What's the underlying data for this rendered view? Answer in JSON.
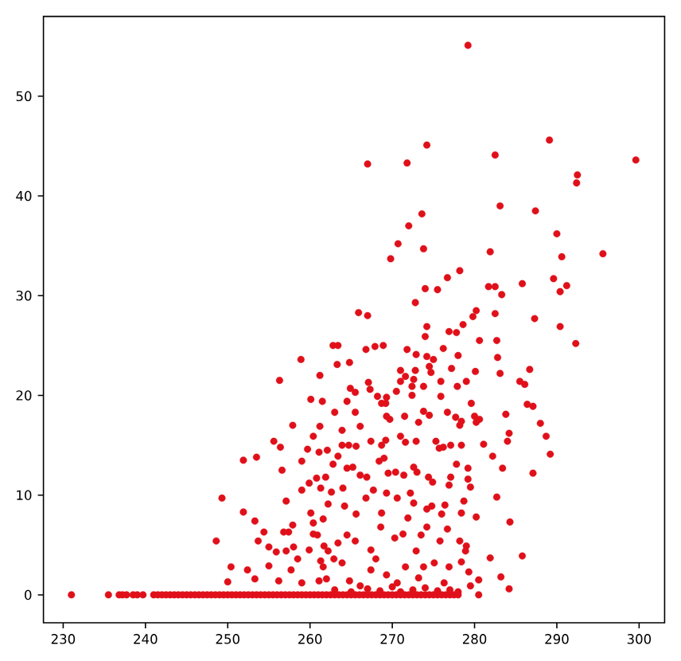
{
  "chart_data": {
    "type": "scatter",
    "color": "#e0101a",
    "marker": "circle",
    "xlim": [
      227.6,
      303.1
    ],
    "ylim": [
      -2.8,
      58.0
    ],
    "xticks": [
      230,
      240,
      250,
      260,
      270,
      280,
      290,
      300
    ],
    "yticks": [
      0,
      10,
      20,
      30,
      40,
      50
    ],
    "x": [
      279.2,
      274.2,
      289.1,
      267.0,
      271.8,
      282.5,
      299.6,
      292.5,
      292.4,
      283.1,
      273.6,
      287.4,
      272.0,
      290.0,
      270.7,
      273.8,
      281.9,
      269.8,
      290.6,
      295.6,
      278.2,
      276.7,
      289.6,
      274.0,
      275.5,
      281.7,
      282.5,
      285.8,
      290.4,
      291.2,
      283.3,
      272.8,
      265.9,
      267.0,
      280.2,
      279.8,
      282.5,
      287.3,
      278.6,
      274.2,
      290.4,
      276.9,
      277.8,
      274.0,
      262.8,
      263.4,
      266.8,
      267.9,
      268.9,
      271.8,
      272.9,
      276.2,
      280.6,
      282.7,
      292.3,
      274.2,
      275.0,
      278.0,
      282.8,
      286.7,
      261.2,
      263.3,
      264.8,
      271.0,
      271.6,
      272.8,
      274.5,
      274.7,
      277.2,
      280.1,
      283.1,
      267.1,
      267.3,
      264.9,
      265.5,
      268.2,
      269.3,
      270.5,
      271.0,
      272.6,
      272.4,
      272.4,
      273.8,
      275.9,
      275.9,
      277.9,
      279.0,
      285.5,
      286.1,
      261.5,
      264.5,
      268.7,
      269.2,
      279.6,
      283.8,
      286.4,
      287.1,
      288.0,
      263.0,
      265.5,
      269.3,
      269.7,
      271.5,
      273.2,
      273.8,
      274.5,
      276.7,
      277.7,
      278.2,
      278.4,
      280.0,
      280.2,
      280.6,
      261.2,
      263.9,
      266.1,
      284.2,
      284.0,
      288.7,
      289.2,
      281.1,
      282.2,
      263.9,
      264.7,
      265.6,
      267.4,
      268.7,
      269.2,
      271.0,
      271.6,
      272.9,
      275.3,
      275.7,
      276.2,
      277.1,
      278.4,
      262.1,
      263.4,
      283.4,
      287.1,
      279.2,
      279.2,
      279.5,
      277.8,
      262.8,
      264.5,
      265.2,
      266.1,
      266.9,
      268.4,
      269.0,
      269.5,
      270.4,
      271.4,
      272.6,
      273.0,
      274.4,
      274.9,
      276.9,
      277.1,
      261.9,
      261.3,
      264.0,
      282.7,
      280.2,
      278.7,
      278.4,
      276.4,
      276.0,
      274.8,
      274.2,
      272.6,
      271.9,
      270.6,
      269.3,
      268.7,
      267.7,
      266.8,
      265.6,
      264.2,
      262.2,
      262.6,
      261.6,
      272.2,
      284.3,
      285.8,
      281.9,
      279.0,
      278.9,
      278.2,
      276.7,
      275.8,
      274.2,
      273.5,
      272.9,
      271.3,
      270.3,
      268.6,
      267.4,
      265.5,
      264.5,
      263.4,
      262.2,
      283.2,
      284.2,
      280.5,
      279.3,
      279.5,
      278.4,
      276.9,
      276.3,
      275.1,
      273.8,
      273.2,
      271.6,
      270.6,
      269.3,
      268.0,
      267.4,
      266.1,
      264.8,
      263.9,
      262.9,
      261.6,
      263.0,
      265.0,
      267.0,
      268.5,
      270.0,
      271.0,
      272.5,
      274.0,
      275.5,
      277.0,
      278.0,
      249.3,
      248.6,
      250.0,
      250.4,
      251.9,
      251.9,
      253.5,
      252.4,
      253.3,
      253.3,
      253.7,
      254.4,
      255.0,
      255.0,
      255.6,
      256.3,
      256.4,
      256.6,
      255.9,
      256.2,
      257.1,
      256.8,
      257.4,
      257.1,
      258.0,
      257.7,
      257.9,
      257.9,
      258.5,
      258.9,
      259.0,
      259.0,
      259.0,
      259.7,
      259.9,
      259.9,
      260.1,
      260.1,
      260.4,
      260.4,
      260.4,
      260.8,
      261.1,
      261.3,
      261.1,
      261.7,
      262.0,
      260.9,
      231.0,
      235.5,
      236.8,
      237.2,
      237.7,
      238.5,
      239.0,
      239.7,
      241.0,
      241.5,
      242.0,
      242.5,
      243.0,
      243.5,
      244.0,
      244.5,
      245.0,
      245.5,
      246.0,
      246.5,
      247.0,
      247.5,
      248.0,
      248.5,
      249.0,
      249.5,
      250.0,
      250.5,
      251.0,
      251.5,
      252.0,
      252.5,
      253.0,
      253.5,
      254.0,
      254.5,
      255.0,
      255.5,
      256.0,
      256.5,
      257.0,
      257.5,
      258.0,
      258.5,
      259.0,
      259.5,
      260.0,
      260.5,
      261.0,
      261.5,
      262.0,
      262.5,
      263.0,
      263.5,
      264.0,
      264.5,
      265.0,
      265.5,
      266.0,
      266.5,
      267.0,
      267.5,
      268.0,
      268.5,
      269.0,
      269.5,
      270.0,
      270.5,
      271.0,
      271.5,
      272.0,
      272.5,
      273.0,
      273.5,
      274.0,
      274.5,
      275.0,
      275.5,
      276.0,
      276.5,
      277.0,
      277.5,
      278.0,
      280.5
    ],
    "values": [
      55.1,
      45.1,
      45.6,
      43.2,
      43.3,
      44.1,
      43.6,
      42.1,
      41.3,
      39.0,
      38.2,
      38.5,
      37.0,
      36.2,
      35.2,
      34.7,
      34.4,
      33.7,
      33.9,
      34.2,
      32.5,
      31.8,
      31.7,
      30.7,
      30.6,
      30.9,
      30.9,
      31.2,
      30.4,
      31.0,
      30.1,
      29.3,
      28.3,
      28.0,
      28.5,
      27.9,
      28.2,
      27.7,
      27.1,
      26.9,
      26.9,
      26.4,
      26.3,
      25.9,
      25.0,
      25.0,
      24.6,
      24.9,
      25.0,
      24.6,
      24.1,
      24.7,
      25.5,
      25.5,
      25.2,
      23.9,
      23.6,
      24.0,
      23.8,
      22.6,
      22.0,
      23.1,
      23.3,
      22.5,
      21.9,
      22.5,
      22.9,
      22.3,
      22.7,
      22.4,
      22.2,
      21.3,
      20.6,
      20.7,
      20.3,
      19.9,
      19.8,
      20.4,
      21.4,
      21.6,
      20.9,
      20.0,
      20.9,
      21.4,
      19.9,
      20.9,
      21.4,
      21.4,
      21.1,
      19.4,
      19.4,
      19.2,
      19.2,
      19.2,
      18.1,
      19.1,
      18.9,
      17.2,
      18.3,
      18.3,
      17.9,
      17.6,
      17.9,
      17.3,
      18.4,
      18.0,
      18.3,
      17.8,
      17.0,
      17.4,
      17.9,
      17.3,
      17.6,
      16.9,
      16.5,
      16.9,
      16.2,
      15.4,
      15.9,
      14.1,
      15.1,
      13.9,
      15.0,
      15.0,
      14.9,
      15.4,
      15.0,
      15.5,
      15.9,
      15.3,
      15.4,
      15.4,
      14.7,
      14.8,
      15.0,
      15.0,
      14.5,
      13.9,
      12.7,
      12.2,
      12.7,
      11.6,
      10.8,
      13.1,
      13.1,
      12.7,
      12.8,
      12.0,
      11.8,
      13.4,
      13.7,
      12.2,
      12.3,
      12.0,
      12.8,
      12.3,
      11.8,
      11.3,
      11.0,
      11.8,
      11.8,
      10.7,
      10.7,
      9.8,
      7.8,
      9.4,
      8.2,
      9.0,
      8.1,
      8.9,
      8.6,
      9.2,
      7.7,
      9.7,
      10.2,
      8.2,
      10.5,
      9.7,
      8.1,
      8.9,
      9.1,
      10.3,
      7.6,
      10.2,
      7.3,
      3.9,
      3.7,
      4.9,
      4.4,
      5.4,
      6.6,
      5.4,
      6.8,
      6.0,
      4.4,
      6.1,
      5.7,
      6.8,
      4.5,
      5.4,
      6.0,
      5.2,
      4.4,
      1.8,
      0.6,
      1.5,
      2.3,
      0.9,
      3.3,
      2.8,
      1.2,
      3.2,
      2.8,
      1.7,
      2.8,
      1.2,
      2.0,
      3.6,
      2.5,
      0.9,
      1.4,
      3.2,
      3.6,
      2.8,
      0.5,
      0.3,
      0.6,
      0.4,
      0.8,
      0.3,
      0.5,
      0.7,
      0.4,
      0.5,
      0.3,
      9.7,
      5.4,
      1.3,
      2.8,
      8.3,
      13.5,
      13.8,
      2.5,
      7.4,
      1.6,
      5.4,
      6.3,
      4.8,
      2.9,
      15.4,
      21.5,
      14.8,
      12.5,
      4.3,
      1.4,
      9.4,
      6.3,
      6.3,
      4.4,
      4.8,
      2.5,
      17.0,
      7.0,
      3.6,
      23.6,
      13.4,
      10.5,
      1.2,
      14.6,
      11.2,
      4.5,
      19.6,
      8.2,
      15.9,
      7.2,
      6.1,
      11.7,
      1.4,
      3.4,
      14.3,
      4.9,
      1.6,
      6.0,
      0,
      0,
      0,
      0,
      0,
      0,
      0,
      0,
      0,
      0,
      0,
      0,
      0,
      0,
      0,
      0,
      0,
      0,
      0,
      0,
      0,
      0,
      0,
      0,
      0,
      0,
      0,
      0,
      0,
      0,
      0,
      0,
      0,
      0,
      0,
      0,
      0,
      0,
      0,
      0,
      0,
      0,
      0,
      0,
      0,
      0,
      0,
      0,
      0,
      0,
      0,
      0,
      0,
      0,
      0,
      0,
      0,
      0,
      0,
      0,
      0,
      0,
      0,
      0,
      0,
      0,
      0,
      0,
      0,
      0,
      0,
      0,
      0,
      0,
      0,
      0,
      0,
      0,
      0,
      0,
      0,
      0,
      0,
      0
    ]
  }
}
